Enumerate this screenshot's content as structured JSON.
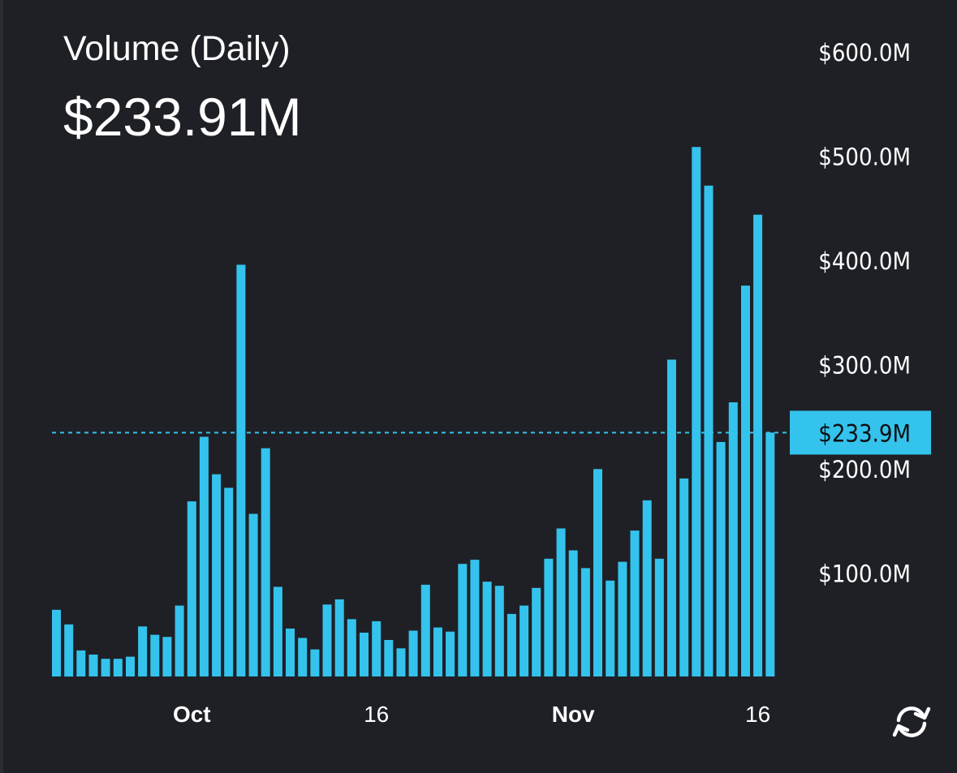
{
  "header": {
    "title": "Volume (Daily)",
    "current_value": "$233.91M"
  },
  "controls": {
    "refresh_icon": "refresh-icon"
  },
  "colors": {
    "background": "#1f2026",
    "bar": "#34c3ec",
    "text": "#ffffff",
    "marker_text": "#0e0f13"
  },
  "chart_data": {
    "type": "bar",
    "title": "Volume (Daily)",
    "unit": "USD",
    "ylim": [
      0,
      600000000
    ],
    "y_ticks": [
      {
        "value": 100000000,
        "label": "$100.0M"
      },
      {
        "value": 200000000,
        "label": "$200.0M"
      },
      {
        "value": 300000000,
        "label": "$300.0M"
      },
      {
        "value": 400000000,
        "label": "$400.0M"
      },
      {
        "value": 500000000,
        "label": "$500.0M"
      },
      {
        "value": 600000000,
        "label": "$600.0M"
      }
    ],
    "x_ticks": [
      {
        "index": 11,
        "label": "Oct"
      },
      {
        "index": 26,
        "label": "16"
      },
      {
        "index": 42,
        "label": "Nov"
      },
      {
        "index": 57,
        "label": "16"
      }
    ],
    "current_marker": {
      "value": 233910000,
      "label": "$233.9M"
    },
    "grid": false,
    "values": [
      64000000,
      50000000,
      25000000,
      21000000,
      17000000,
      17000000,
      19000000,
      48000000,
      40000000,
      38000000,
      68000000,
      168000000,
      230000000,
      194000000,
      181000000,
      395000000,
      156000000,
      219000000,
      86000000,
      46000000,
      37000000,
      26000000,
      69000000,
      74000000,
      55000000,
      42000000,
      53000000,
      35000000,
      27000000,
      44000000,
      88000000,
      47000000,
      43000000,
      108000000,
      112000000,
      91000000,
      87000000,
      60000000,
      68000000,
      85000000,
      113000000,
      142000000,
      121000000,
      104000000,
      199000000,
      92000000,
      110000000,
      140000000,
      169000000,
      113000000,
      304000000,
      190000000,
      508000000,
      471000000,
      225000000,
      263000000,
      375000000,
      443000000,
      234000000
    ]
  }
}
